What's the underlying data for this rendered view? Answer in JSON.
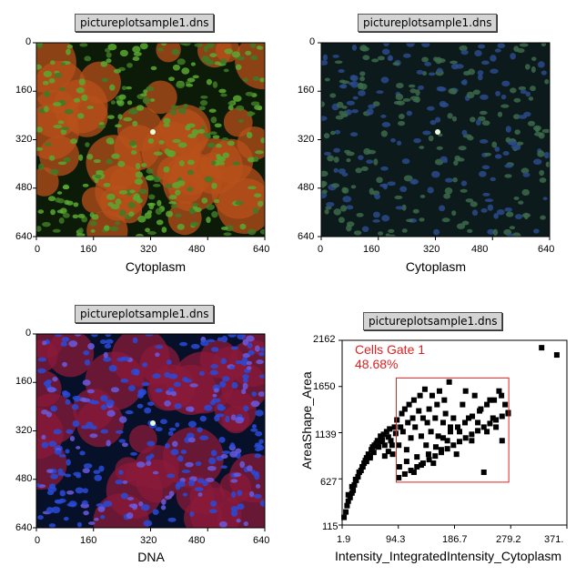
{
  "images": [
    {
      "file": "pictureplotsample1.dns",
      "xlabel": "Cytoplasm",
      "xticks": [
        "0",
        "160",
        "320",
        "480",
        "640"
      ],
      "yticks": [
        "0",
        "160",
        "320",
        "480",
        "640"
      ],
      "style": "green-red-overlay"
    },
    {
      "file": "pictureplotsample1.dns",
      "xlabel": "Cytoplasm",
      "xticks": [
        "0",
        "160",
        "320",
        "480",
        "640"
      ],
      "yticks": [
        "0",
        "160",
        "320",
        "480",
        "640"
      ],
      "style": "green-blue"
    },
    {
      "file": "pictureplotsample1.dns",
      "xlabel": "DNA",
      "xticks": [
        "0",
        "160",
        "320",
        "480",
        "640"
      ],
      "yticks": [
        "0",
        "160",
        "320",
        "480",
        "640"
      ],
      "style": "blue-red-overlay"
    }
  ],
  "scatter": {
    "file": "pictureplotsample1.dns",
    "gate_name": "Cells Gate 1",
    "gate_pct": "48.68%",
    "xlabel": "Intensity_IntegratedIntensity_Cytoplasm",
    "ylabel": "AreaShape_Area",
    "xticks": [
      "1.9",
      "94.3",
      "186.7",
      "279.2",
      "371."
    ],
    "yticks": [
      "2162",
      "1650",
      "1139",
      "627",
      "115"
    ]
  },
  "chart_data": {
    "type": "scatter",
    "xlabel": "Intensity_IntegratedIntensity_Cytoplasm",
    "ylabel": "AreaShape_Area",
    "xlim": [
      1.9,
      371.6
    ],
    "ylim": [
      115,
      2162
    ],
    "gate": {
      "name": "Cells Gate 1",
      "percent": 48.68,
      "x": [
        91,
        276
      ],
      "y": [
        590,
        1745
      ]
    },
    "x": [
      5,
      8,
      10,
      12,
      15,
      18,
      20,
      22,
      25,
      28,
      30,
      33,
      35,
      38,
      40,
      42,
      45,
      48,
      50,
      52,
      55,
      58,
      60,
      62,
      65,
      68,
      70,
      72,
      75,
      78,
      80,
      82,
      85,
      88,
      90,
      92,
      95,
      98,
      100,
      102,
      105,
      108,
      110,
      112,
      115,
      118,
      120,
      122,
      125,
      128,
      130,
      132,
      135,
      138,
      140,
      142,
      145,
      148,
      150,
      152,
      155,
      158,
      160,
      162,
      165,
      168,
      170,
      172,
      175,
      178,
      180,
      185,
      190,
      195,
      200,
      205,
      210,
      215,
      220,
      225,
      230,
      235,
      240,
      245,
      250,
      255,
      260,
      265,
      270,
      275,
      12,
      18,
      24,
      30,
      36,
      42,
      48,
      54,
      60,
      66,
      72,
      78,
      84,
      96,
      108,
      120,
      132,
      144,
      156,
      168,
      180,
      192,
      204,
      216,
      228,
      240,
      252,
      264,
      95,
      105,
      115,
      125,
      135,
      145,
      155,
      165,
      175,
      185,
      195,
      205,
      215,
      225,
      235,
      245,
      255,
      265,
      275,
      330,
      355
    ],
    "y": [
      200,
      260,
      330,
      380,
      420,
      470,
      500,
      560,
      610,
      650,
      700,
      720,
      760,
      800,
      830,
      860,
      900,
      880,
      950,
      980,
      1000,
      1020,
      1050,
      980,
      1100,
      1060,
      1120,
      1000,
      1150,
      1090,
      1180,
      1050,
      900,
      1200,
      1130,
      1280,
      1000,
      1200,
      1350,
      1150,
      1400,
      950,
      1250,
      1450,
      1080,
      1300,
      1500,
      1200,
      870,
      1380,
      1550,
      1100,
      1300,
      1620,
      1000,
      1250,
      1400,
      1150,
      1550,
      800,
      1300,
      1450,
      1100,
      1600,
      950,
      1250,
      1500,
      1350,
      1050,
      1700,
      1200,
      1300,
      900,
      1150,
      1450,
      1600,
      1300,
      1050,
      1550,
      1250,
      1400,
      700,
      1150,
      1500,
      1300,
      1200,
      1600,
      1050,
      1450,
      1350,
      450,
      540,
      620,
      700,
      760,
      820,
      860,
      920,
      990,
      1040,
      880,
      930,
      1000,
      760,
      820,
      700,
      780,
      900,
      980,
      1080,
      1150,
      1200,
      1250,
      1320,
      1380,
      1450,
      1500,
      1550,
      640,
      680,
      720,
      760,
      800,
      840,
      880,
      920,
      960,
      1000,
      1040,
      1080,
      1120,
      1160,
      1200,
      1240,
      1280,
      1320,
      1360,
      2080,
      2000
    ]
  }
}
